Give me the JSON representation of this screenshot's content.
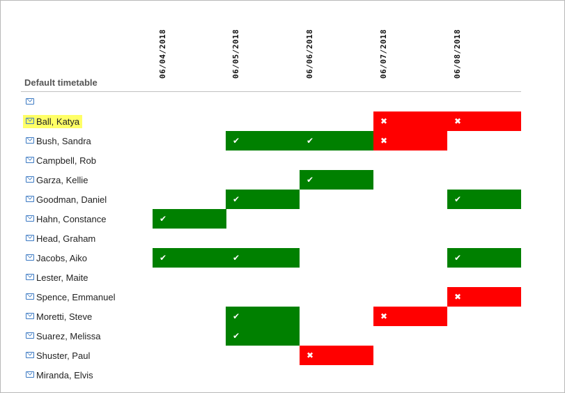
{
  "timetable_title": "Default timetable",
  "dates": [
    "06/04/2018",
    "06/05/2018",
    "06/06/2018",
    "06/07/2018",
    "06/08/2018"
  ],
  "colors": {
    "yes": "#008000",
    "no": "#ff0000",
    "highlight": "#ffff66"
  },
  "icons": {
    "yes": "✔",
    "no": "✖",
    "mail": "mail-icon"
  },
  "rows": [
    {
      "name": "",
      "highlighted": false,
      "cells": [
        "",
        "",
        "",
        "",
        ""
      ]
    },
    {
      "name": "Ball, Katya",
      "highlighted": true,
      "cells": [
        "",
        "",
        "",
        "no",
        "no"
      ]
    },
    {
      "name": "Bush, Sandra",
      "highlighted": false,
      "cells": [
        "",
        "yes",
        "yes",
        "no",
        ""
      ]
    },
    {
      "name": "Campbell, Rob",
      "highlighted": false,
      "cells": [
        "",
        "",
        "",
        "",
        ""
      ]
    },
    {
      "name": "Garza, Kellie",
      "highlighted": false,
      "cells": [
        "",
        "",
        "yes",
        "",
        ""
      ]
    },
    {
      "name": "Goodman, Daniel",
      "highlighted": false,
      "cells": [
        "",
        "yes",
        "",
        "",
        "yes"
      ]
    },
    {
      "name": "Hahn, Constance",
      "highlighted": false,
      "cells": [
        "yes",
        "",
        "",
        "",
        ""
      ]
    },
    {
      "name": "Head, Graham",
      "highlighted": false,
      "cells": [
        "",
        "",
        "",
        "",
        ""
      ]
    },
    {
      "name": "Jacobs, Aiko",
      "highlighted": false,
      "cells": [
        "yes",
        "yes",
        "",
        "",
        "yes"
      ]
    },
    {
      "name": "Lester, Maite",
      "highlighted": false,
      "cells": [
        "",
        "",
        "",
        "",
        ""
      ]
    },
    {
      "name": "Spence, Emmanuel",
      "highlighted": false,
      "cells": [
        "",
        "",
        "",
        "",
        "no"
      ]
    },
    {
      "name": "Moretti, Steve",
      "highlighted": false,
      "cells": [
        "",
        "yes",
        "",
        "no",
        ""
      ]
    },
    {
      "name": "Suarez, Melissa",
      "highlighted": false,
      "cells": [
        "",
        "yes",
        "",
        "",
        ""
      ]
    },
    {
      "name": "Shuster, Paul",
      "highlighted": false,
      "cells": [
        "",
        "",
        "no",
        "",
        ""
      ]
    },
    {
      "name": "Miranda, Elvis",
      "highlighted": false,
      "cells": [
        "",
        "",
        "",
        "",
        ""
      ]
    }
  ]
}
